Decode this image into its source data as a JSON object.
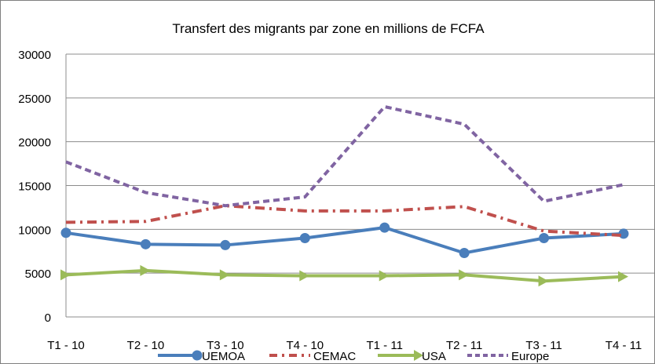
{
  "chart_data": {
    "type": "line",
    "title": "Transfert des migrants par zone en millions de FCFA",
    "xlabel": "",
    "ylabel": "",
    "ylim": [
      0,
      30000
    ],
    "yticks": [
      0,
      5000,
      10000,
      15000,
      20000,
      25000,
      30000
    ],
    "grid": true,
    "legend_position": "bottom",
    "categories": [
      "T1 - 10",
      "T2 - 10",
      "T3 - 10",
      "T4 - 10",
      "T1 - 11",
      "T2 - 11",
      "T3 - 11",
      "T4 - 11"
    ],
    "series": [
      {
        "name": "UEMOA",
        "color": "#4a7ebb",
        "style": "solid-marker",
        "values": [
          9600,
          8300,
          8200,
          9000,
          10200,
          7300,
          9000,
          9500
        ]
      },
      {
        "name": "CEMAC",
        "color": "#c0504d",
        "style": "dashdot",
        "values": [
          10800,
          10900,
          12700,
          12100,
          12100,
          12600,
          9800,
          9300
        ]
      },
      {
        "name": "USA",
        "color": "#9bbb59",
        "style": "arrow",
        "values": [
          4800,
          5300,
          4800,
          4700,
          4700,
          4800,
          4100,
          4600
        ]
      },
      {
        "name": "Europe",
        "color": "#8064a2",
        "style": "dashed",
        "values": [
          17700,
          14200,
          12700,
          13700,
          24000,
          22000,
          13200,
          15100
        ]
      }
    ]
  }
}
